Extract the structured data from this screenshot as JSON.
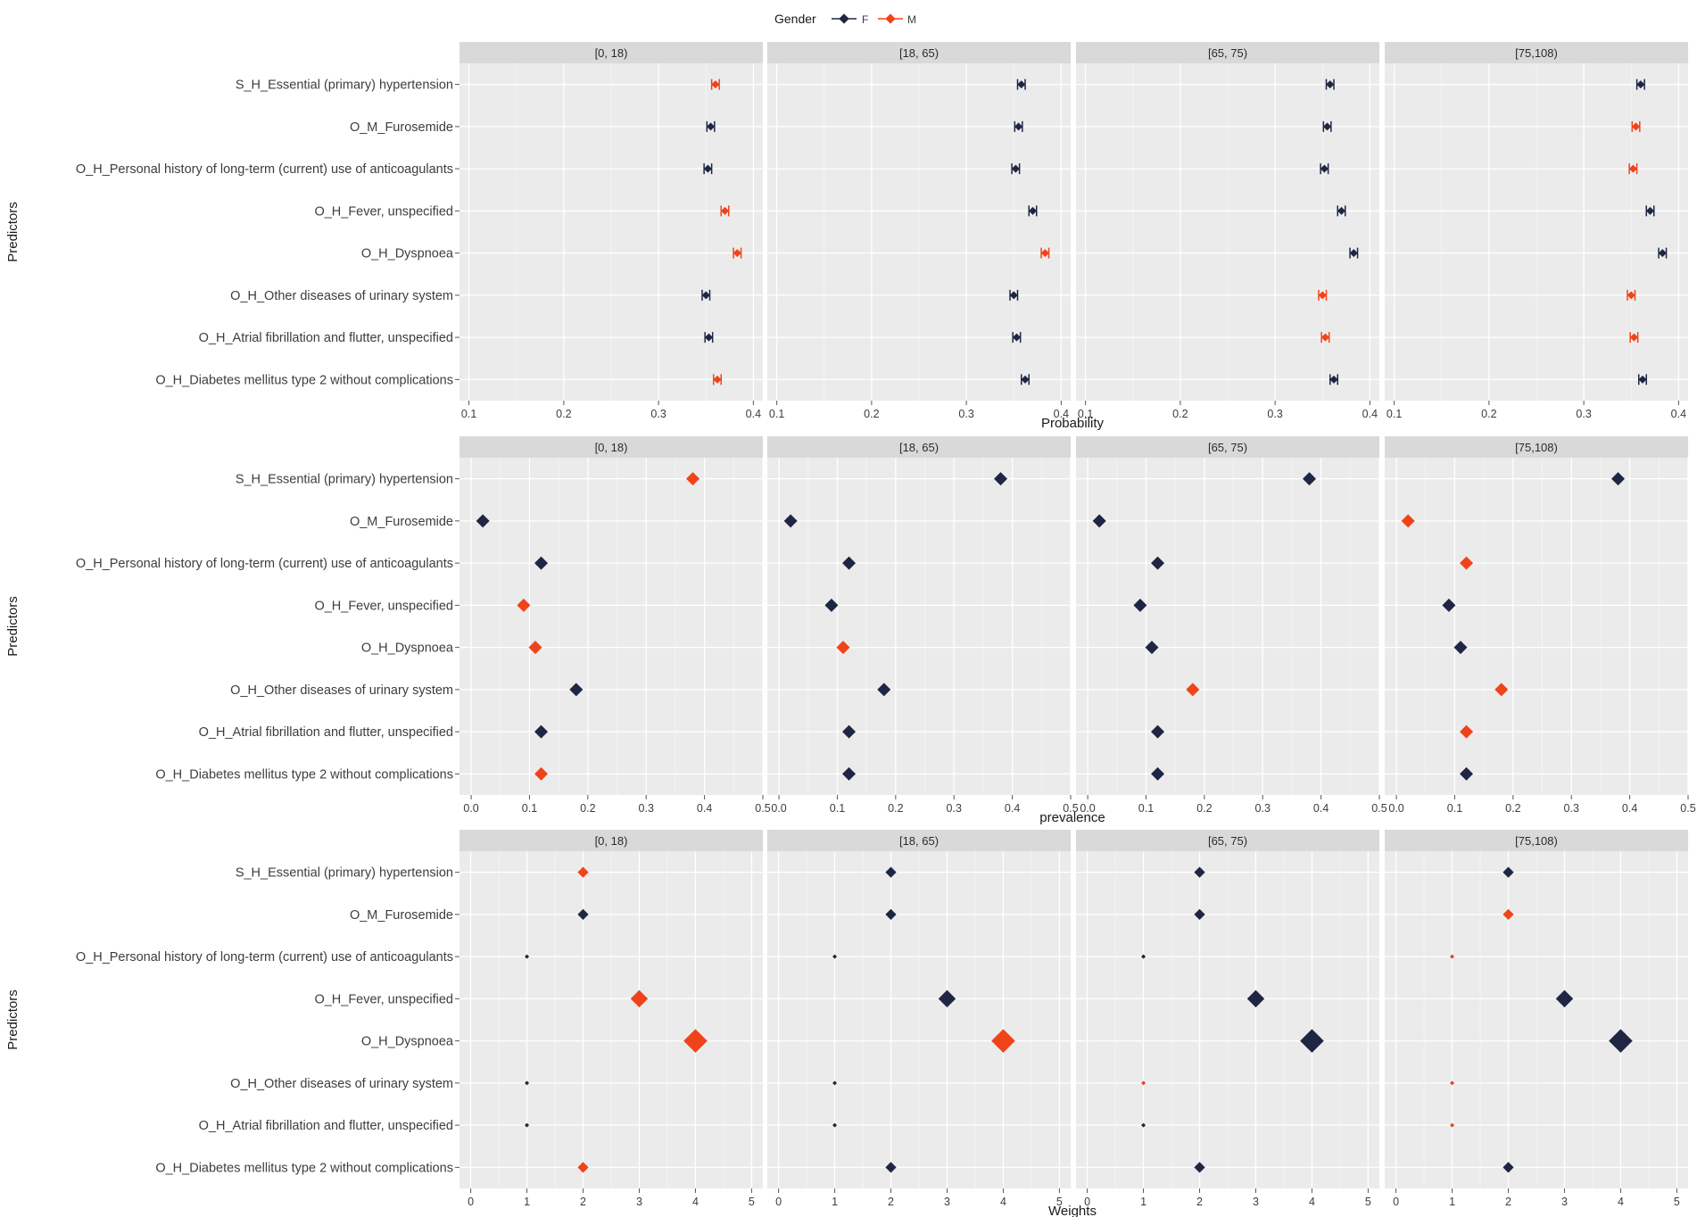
{
  "legend": {
    "title": "Gender",
    "items": [
      {
        "key": "F",
        "label": "F",
        "color": "#1f2644"
      },
      {
        "key": "M",
        "label": "M",
        "color": "#f0431a"
      }
    ]
  },
  "ylabel": "Predictors",
  "predictors": [
    "S_H_Essential (primary) hypertension",
    "O_M_Furosemide",
    "O_H_Personal history of long-term (current) use of anticoagulants",
    "O_H_Fever, unspecified",
    "O_H_Dyspnoea",
    "O_H_Other diseases of urinary system",
    "O_H_Atrial fibrillation and flutter, unspecified",
    "O_H_Diabetes mellitus type 2 without complications"
  ],
  "age_groups": [
    "[0, 18)",
    "[18, 65)",
    "[65, 75)",
    "[75,108)"
  ],
  "chart_data": [
    {
      "type": "scatter",
      "title": "",
      "xlabel": "Probability",
      "ylabel": "Predictors",
      "xlim": [
        0.09,
        0.41
      ],
      "xticks": [
        0.1,
        0.2,
        0.3,
        0.4
      ],
      "xtick_labels": [
        "0.1",
        "0.2",
        "0.3",
        "0.4"
      ],
      "errorbars": true,
      "panels": [
        {
          "group": "[0, 18)",
          "points": [
            {
              "gender": "M",
              "value": 0.36
            },
            {
              "gender": "F",
              "value": 0.355
            },
            {
              "gender": "F",
              "value": 0.352
            },
            {
              "gender": "M",
              "value": 0.37
            },
            {
              "gender": "M",
              "value": 0.383
            },
            {
              "gender": "F",
              "value": 0.35
            },
            {
              "gender": "F",
              "value": 0.353
            },
            {
              "gender": "M",
              "value": 0.362
            }
          ]
        },
        {
          "group": "[18, 65)",
          "points": [
            {
              "gender": "F",
              "value": 0.358
            },
            {
              "gender": "F",
              "value": 0.355
            },
            {
              "gender": "F",
              "value": 0.352
            },
            {
              "gender": "F",
              "value": 0.37
            },
            {
              "gender": "M",
              "value": 0.383
            },
            {
              "gender": "F",
              "value": 0.35
            },
            {
              "gender": "F",
              "value": 0.353
            },
            {
              "gender": "F",
              "value": 0.362
            }
          ]
        },
        {
          "group": "[65, 75)",
          "points": [
            {
              "gender": "F",
              "value": 0.358
            },
            {
              "gender": "F",
              "value": 0.355
            },
            {
              "gender": "F",
              "value": 0.352
            },
            {
              "gender": "F",
              "value": 0.37
            },
            {
              "gender": "F",
              "value": 0.383
            },
            {
              "gender": "M",
              "value": 0.35
            },
            {
              "gender": "M",
              "value": 0.353
            },
            {
              "gender": "F",
              "value": 0.362
            }
          ]
        },
        {
          "group": "[75,108)",
          "points": [
            {
              "gender": "F",
              "value": 0.36
            },
            {
              "gender": "M",
              "value": 0.355
            },
            {
              "gender": "M",
              "value": 0.352
            },
            {
              "gender": "F",
              "value": 0.37
            },
            {
              "gender": "F",
              "value": 0.383
            },
            {
              "gender": "M",
              "value": 0.35
            },
            {
              "gender": "M",
              "value": 0.353
            },
            {
              "gender": "F",
              "value": 0.362
            }
          ]
        }
      ]
    },
    {
      "type": "scatter",
      "title": "",
      "xlabel": "prevalence",
      "ylabel": "Predictors",
      "xlim": [
        -0.02,
        0.5
      ],
      "xticks": [
        0.0,
        0.1,
        0.2,
        0.3,
        0.4,
        0.5
      ],
      "xtick_labels": [
        "0.0",
        "0.1",
        "0.2",
        "0.3",
        "0.4",
        "0.5"
      ],
      "errorbars": false,
      "panels": [
        {
          "group": "[0, 18)",
          "points": [
            {
              "gender": "M",
              "value": 0.38
            },
            {
              "gender": "F",
              "value": 0.02
            },
            {
              "gender": "F",
              "value": 0.12
            },
            {
              "gender": "M",
              "value": 0.09
            },
            {
              "gender": "M",
              "value": 0.11
            },
            {
              "gender": "F",
              "value": 0.18
            },
            {
              "gender": "F",
              "value": 0.12
            },
            {
              "gender": "M",
              "value": 0.12
            }
          ]
        },
        {
          "group": "[18, 65)",
          "points": [
            {
              "gender": "F",
              "value": 0.38
            },
            {
              "gender": "F",
              "value": 0.02
            },
            {
              "gender": "F",
              "value": 0.12
            },
            {
              "gender": "F",
              "value": 0.09
            },
            {
              "gender": "M",
              "value": 0.11
            },
            {
              "gender": "F",
              "value": 0.18
            },
            {
              "gender": "F",
              "value": 0.12
            },
            {
              "gender": "F",
              "value": 0.12
            }
          ]
        },
        {
          "group": "[65, 75)",
          "points": [
            {
              "gender": "F",
              "value": 0.38
            },
            {
              "gender": "F",
              "value": 0.02
            },
            {
              "gender": "F",
              "value": 0.12
            },
            {
              "gender": "F",
              "value": 0.09
            },
            {
              "gender": "F",
              "value": 0.11
            },
            {
              "gender": "M",
              "value": 0.18
            },
            {
              "gender": "F",
              "value": 0.12
            },
            {
              "gender": "F",
              "value": 0.12
            }
          ]
        },
        {
          "group": "[75,108)",
          "points": [
            {
              "gender": "F",
              "value": 0.38
            },
            {
              "gender": "M",
              "value": 0.02
            },
            {
              "gender": "M",
              "value": 0.12
            },
            {
              "gender": "F",
              "value": 0.09
            },
            {
              "gender": "F",
              "value": 0.11
            },
            {
              "gender": "M",
              "value": 0.18
            },
            {
              "gender": "M",
              "value": 0.12
            },
            {
              "gender": "F",
              "value": 0.12
            }
          ]
        }
      ]
    },
    {
      "type": "scatter",
      "title": "",
      "xlabel": "Weights",
      "ylabel": "Predictors",
      "xlim": [
        -0.2,
        5.2
      ],
      "xticks": [
        0,
        1,
        2,
        3,
        4,
        5
      ],
      "xtick_labels": [
        "0",
        "1",
        "2",
        "3",
        "4",
        "5"
      ],
      "errorbars": false,
      "size_by_value": true,
      "panels": [
        {
          "group": "[0, 18)",
          "points": [
            {
              "gender": "M",
              "value": 2
            },
            {
              "gender": "F",
              "value": 2
            },
            {
              "gender": "F",
              "value": 1
            },
            {
              "gender": "M",
              "value": 3
            },
            {
              "gender": "M",
              "value": 4
            },
            {
              "gender": "F",
              "value": 1
            },
            {
              "gender": "F",
              "value": 1
            },
            {
              "gender": "M",
              "value": 2
            }
          ]
        },
        {
          "group": "[18, 65)",
          "points": [
            {
              "gender": "F",
              "value": 2
            },
            {
              "gender": "F",
              "value": 2
            },
            {
              "gender": "F",
              "value": 1
            },
            {
              "gender": "F",
              "value": 3
            },
            {
              "gender": "M",
              "value": 4
            },
            {
              "gender": "F",
              "value": 1
            },
            {
              "gender": "F",
              "value": 1
            },
            {
              "gender": "F",
              "value": 2
            }
          ]
        },
        {
          "group": "[65, 75)",
          "points": [
            {
              "gender": "F",
              "value": 2
            },
            {
              "gender": "F",
              "value": 2
            },
            {
              "gender": "F",
              "value": 1
            },
            {
              "gender": "F",
              "value": 3
            },
            {
              "gender": "F",
              "value": 4
            },
            {
              "gender": "M",
              "value": 1
            },
            {
              "gender": "F",
              "value": 1
            },
            {
              "gender": "F",
              "value": 2
            }
          ]
        },
        {
          "group": "[75,108)",
          "points": [
            {
              "gender": "F",
              "value": 2
            },
            {
              "gender": "M",
              "value": 2
            },
            {
              "gender": "M",
              "value": 1
            },
            {
              "gender": "F",
              "value": 3
            },
            {
              "gender": "F",
              "value": 4
            },
            {
              "gender": "M",
              "value": 1
            },
            {
              "gender": "M",
              "value": 1
            },
            {
              "gender": "F",
              "value": 2
            }
          ]
        }
      ]
    }
  ]
}
